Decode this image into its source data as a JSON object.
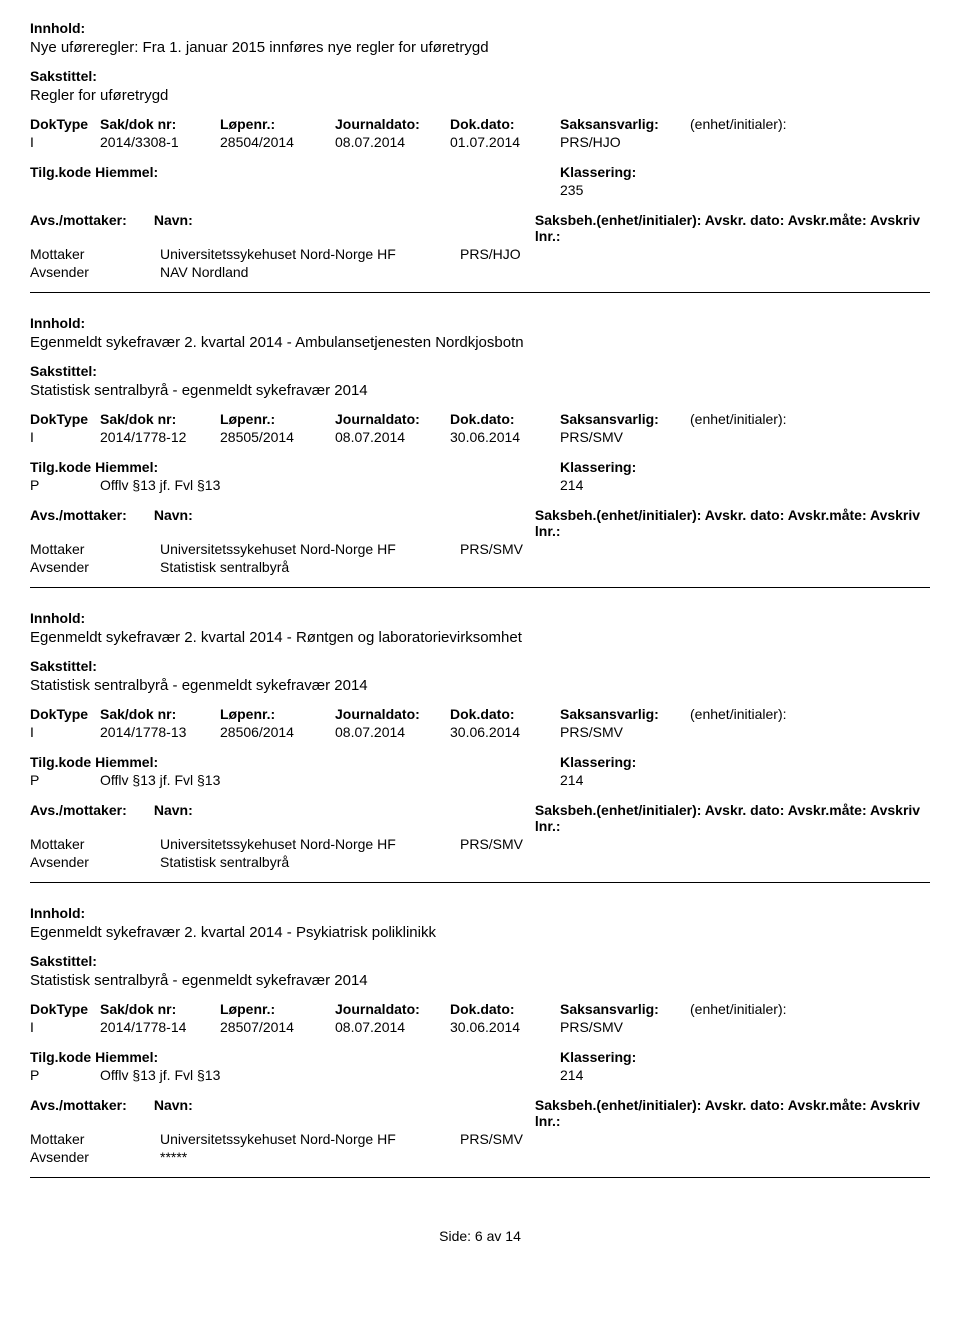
{
  "labels": {
    "innhold": "Innhold:",
    "sakstittel": "Sakstittel:",
    "doktype": "DokType",
    "sakdok": "Sak/dok nr:",
    "lopenr": "Løpenr.:",
    "journaldato": "Journaldato:",
    "dokdato": "Dok.dato:",
    "saksansvarlig": "Saksansvarlig:",
    "enhet": "(enhet/initialer):",
    "tilgkode": "Tilg.kode",
    "hjemmel": "Hiemmel:",
    "klassering": "Klassering:",
    "avsmottaker": "Avs./mottaker:",
    "navn": "Navn:",
    "saksbeh_long": "Saksbeh.(enhet/initialer): Avskr. dato:  Avskr.måte:  Avskriv lnr.:",
    "saksbeh_short": "Saksbeh.(enhet/initialer):",
    "avskr_rest": "Avskr. dato:  Avskr.måte:  Avskriv lnr.:",
    "mottaker": "Mottaker",
    "avsender": "Avsender"
  },
  "entries": [
    {
      "innhold": "Nye uføreregler: Fra 1. januar 2015 innføres nye regler for uføretrygd",
      "sakstittel": "Regler for uføretrygd",
      "doktype": "I",
      "sakdok": "2014/3308-1",
      "lopenr": "28504/2014",
      "journaldato": "08.07.2014",
      "dokdato": "01.07.2014",
      "saksansvarlig": "PRS/HJO",
      "tilgkode": "",
      "hjemmel": "",
      "klassering": "235",
      "avs_style": "block",
      "mottaker_navn": "Universitetssykehuset Nord-Norge HF",
      "mottaker_saksbeh": "PRS/HJO",
      "avsender_navn": "NAV Nordland"
    },
    {
      "innhold": "Egenmeldt sykefravær 2. kvartal 2014 - Ambulansetjenesten Nordkjosbotn",
      "sakstittel": "Statistisk sentralbyrå - egenmeldt sykefravær 2014",
      "doktype": "I",
      "sakdok": "2014/1778-12",
      "lopenr": "28505/2014",
      "journaldato": "08.07.2014",
      "dokdato": "30.06.2014",
      "saksansvarlig": "PRS/SMV",
      "tilgkode": "P",
      "hjemmel": "Offlv §13 jf. Fvl §13",
      "klassering": "214",
      "avs_style": "block",
      "mottaker_navn": "Universitetssykehuset Nord-Norge HF",
      "mottaker_saksbeh": "PRS/SMV",
      "avsender_navn": "Statistisk sentralbyrå"
    },
    {
      "innhold": "Egenmeldt sykefravær 2. kvartal 2014 - Røntgen og laboratorievirksomhet",
      "sakstittel": "Statistisk sentralbyrå - egenmeldt sykefravær 2014",
      "doktype": "I",
      "sakdok": "2014/1778-13",
      "lopenr": "28506/2014",
      "journaldato": "08.07.2014",
      "dokdato": "30.06.2014",
      "saksansvarlig": "PRS/SMV",
      "tilgkode": "P",
      "hjemmel": "Offlv §13 jf. Fvl §13",
      "klassering": "214",
      "avs_style": "inline",
      "mottaker_navn": "Universitetssykehuset Nord-Norge HF",
      "mottaker_saksbeh": "PRS/SMV",
      "avsender_navn": "Statistisk sentralbyrå"
    },
    {
      "innhold": "Egenmeldt sykefravær 2. kvartal 2014 - Psykiatrisk poliklinikk",
      "sakstittel": "Statistisk sentralbyrå - egenmeldt sykefravær 2014",
      "doktype": "I",
      "sakdok": "2014/1778-14",
      "lopenr": "28507/2014",
      "journaldato": "08.07.2014",
      "dokdato": "30.06.2014",
      "saksansvarlig": "PRS/SMV",
      "tilgkode": "P",
      "hjemmel": "Offlv §13 jf. Fvl §13",
      "klassering": "214",
      "avs_style": "inline",
      "mottaker_navn": "Universitetssykehuset Nord-Norge HF",
      "mottaker_saksbeh": "PRS/SMV",
      "avsender_navn": "*****"
    }
  ],
  "footer": "Side:  6  av  14"
}
